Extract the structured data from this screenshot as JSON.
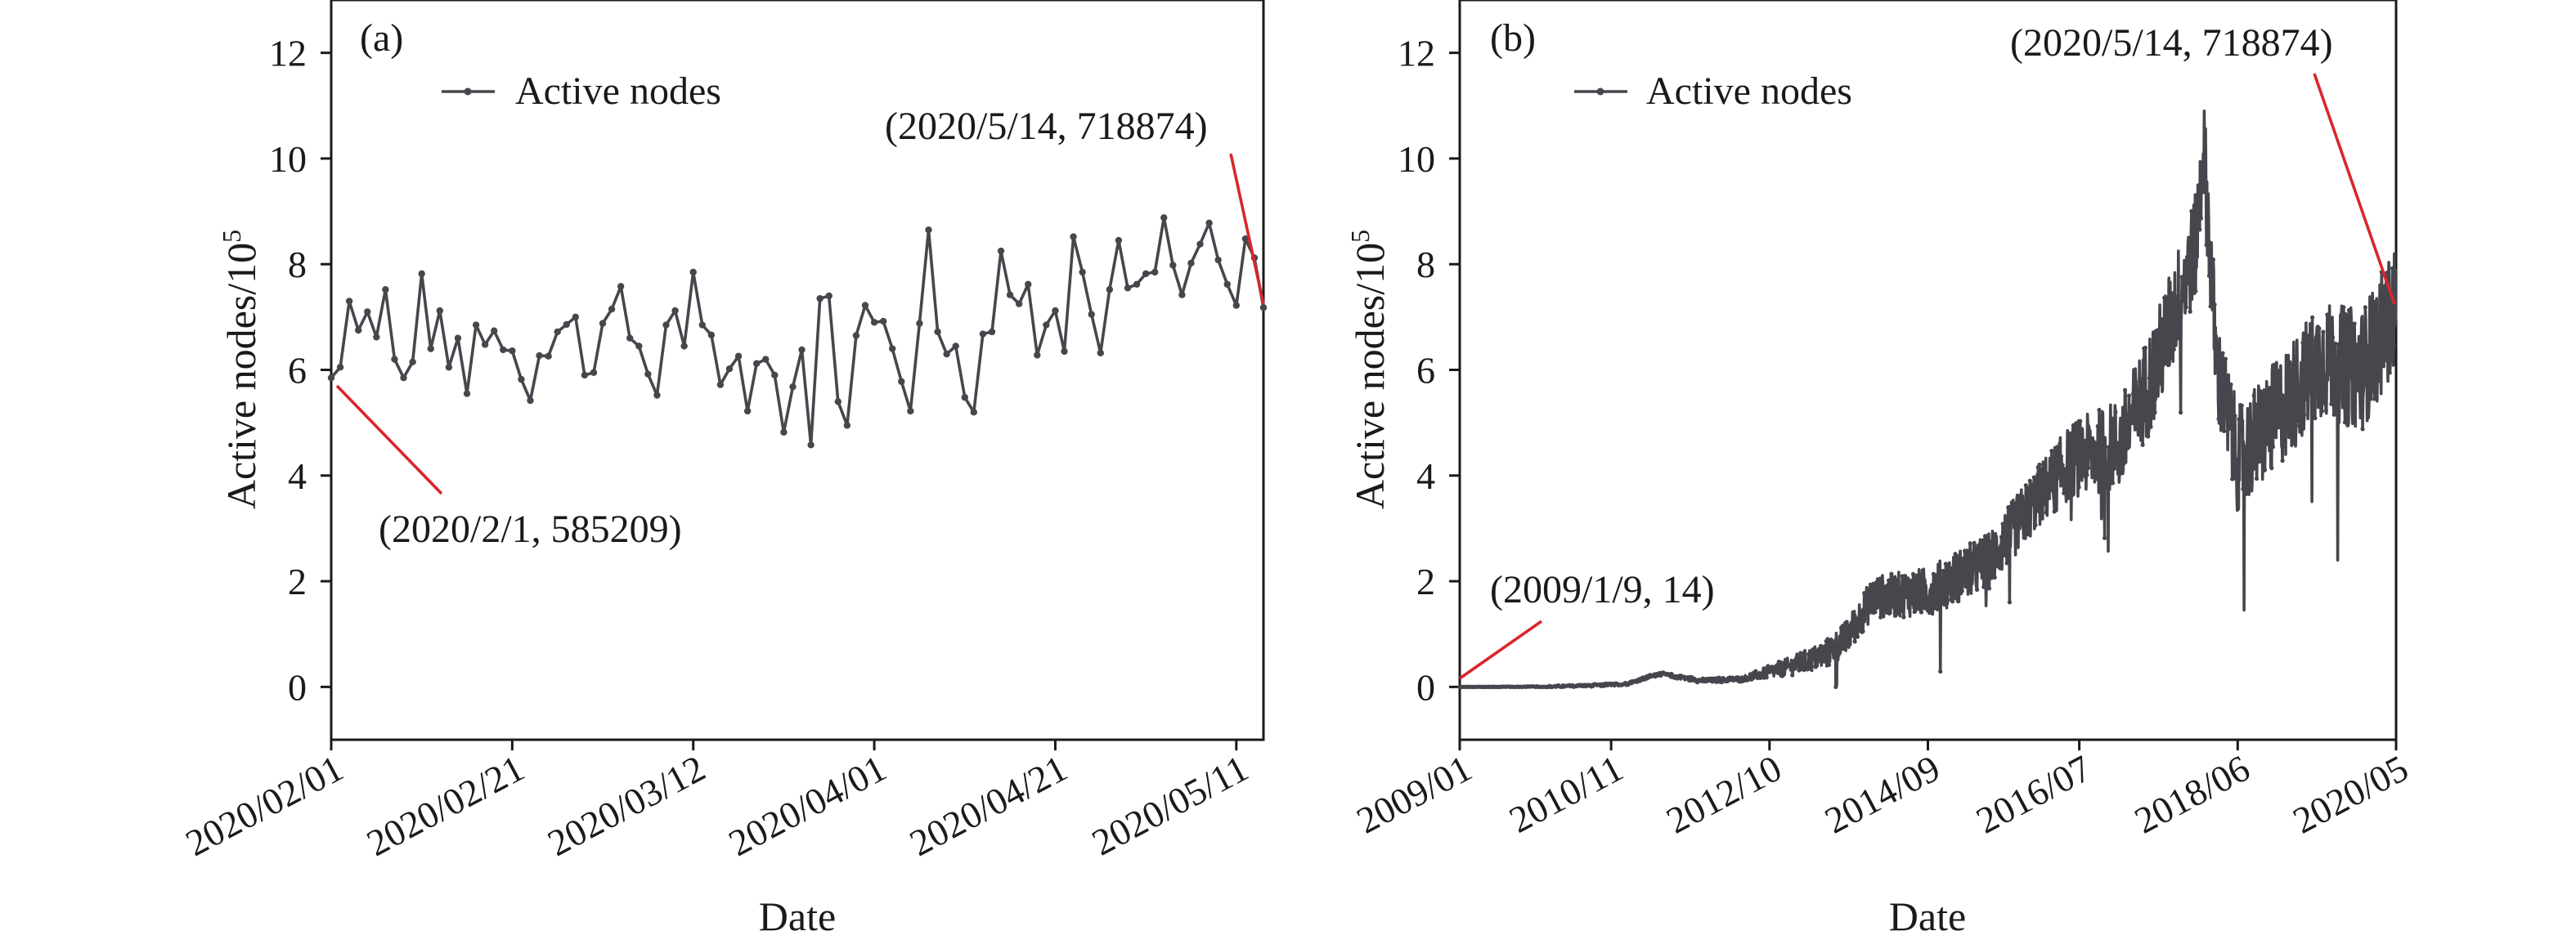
{
  "chart_data": [
    {
      "type": "line",
      "panel_tag": "(a)",
      "xlabel": "Date",
      "ylabel": "Active nodes/10",
      "ylabel_exponent": "5",
      "ylim": [
        -1,
        13
      ],
      "yticks": [
        "0",
        "2",
        "4",
        "6",
        "8",
        "10",
        "12"
      ],
      "xlim": [
        "2020-02-01",
        "2020-05-14"
      ],
      "xticks": [
        "2020/02/01",
        "2020/02/21",
        "2020/03/12",
        "2020/04/01",
        "2020/04/21",
        "2020/05/11"
      ],
      "legend": {
        "label": "Active nodes",
        "position": "top-left"
      },
      "colors": {
        "series": "#45474d",
        "annotation": "#d9262b"
      },
      "annotations": [
        {
          "text": "(2020/2/1, 585209)",
          "date": "2020-02-01",
          "value": 5.85209
        },
        {
          "text": "(2020/5/14, 718874)",
          "date": "2020-05-14",
          "value": 7.18874
        }
      ],
      "series": [
        {
          "name": "Active nodes",
          "start_date": "2020-02-01",
          "values": [
            5.85,
            6.05,
            7.3,
            6.75,
            7.1,
            6.62,
            7.52,
            6.2,
            5.85,
            6.15,
            7.82,
            6.4,
            7.12,
            6.05,
            6.6,
            5.55,
            6.85,
            6.48,
            6.74,
            6.38,
            6.36,
            5.82,
            5.42,
            6.27,
            6.26,
            6.72,
            6.86,
            7.0,
            5.9,
            5.95,
            6.88,
            7.15,
            7.58,
            6.6,
            6.45,
            5.92,
            5.52,
            6.85,
            7.12,
            6.45,
            7.85,
            6.85,
            6.66,
            5.72,
            6.02,
            6.26,
            5.22,
            6.12,
            6.2,
            5.9,
            4.82,
            5.68,
            6.38,
            4.58,
            7.35,
            7.4,
            5.4,
            4.95,
            6.65,
            7.22,
            6.9,
            6.92,
            6.4,
            5.78,
            5.22,
            6.88,
            8.65,
            6.72,
            6.3,
            6.45,
            5.48,
            5.2,
            6.68,
            6.72,
            8.25,
            7.42,
            7.25,
            7.62,
            6.28,
            6.85,
            7.12,
            6.35,
            8.52,
            7.85,
            7.05,
            6.32,
            7.52,
            8.45,
            7.55,
            7.62,
            7.82,
            7.85,
            8.88,
            7.98,
            7.42,
            8.02,
            8.38,
            8.78,
            8.08,
            7.62,
            7.22,
            8.48,
            8.12,
            7.18
          ]
        }
      ]
    },
    {
      "type": "line",
      "panel_tag": "(b)",
      "xlabel": "Date",
      "ylabel": "Active nodes/10",
      "ylabel_exponent": "5",
      "ylim": [
        -1,
        13
      ],
      "yticks": [
        "0",
        "2",
        "4",
        "6",
        "8",
        "10",
        "12"
      ],
      "xlim": [
        "2009-01",
        "2020-05"
      ],
      "xticks": [
        "2009/01",
        "2010/11",
        "2012/10",
        "2014/09",
        "2016/07",
        "2018/06",
        "2020/05"
      ],
      "legend": {
        "label": "Active nodes",
        "position": "top-left"
      },
      "colors": {
        "series": "#45474d",
        "annotation": "#d9262b"
      },
      "annotations": [
        {
          "text": "(2009/1/9, 14)",
          "date": "2009-01-09",
          "value": 0.00014
        },
        {
          "text": "(2020/5/14, 718874)",
          "date": "2020-05-14",
          "value": 7.18874
        }
      ],
      "series": [
        {
          "name": "Active nodes",
          "resolution": "daily (approximated from trend)",
          "trend": [
            {
              "date": "2009-01",
              "value": 0.0
            },
            {
              "date": "2010-01",
              "value": 0.0
            },
            {
              "date": "2011-01",
              "value": 0.05
            },
            {
              "date": "2011-06",
              "value": 0.25
            },
            {
              "date": "2011-12",
              "value": 0.12
            },
            {
              "date": "2012-06",
              "value": 0.15
            },
            {
              "date": "2012-12",
              "value": 0.35
            },
            {
              "date": "2013-06",
              "value": 0.6
            },
            {
              "date": "2013-09",
              "value": 0.9
            },
            {
              "date": "2014-01",
              "value": 1.7
            },
            {
              "date": "2014-09",
              "value": 1.8
            },
            {
              "date": "2015-06",
              "value": 2.4
            },
            {
              "date": "2016-01",
              "value": 3.6
            },
            {
              "date": "2016-06",
              "value": 4.3
            },
            {
              "date": "2017-01",
              "value": 4.6
            },
            {
              "date": "2017-06",
              "value": 6.0
            },
            {
              "date": "2017-12",
              "value": 8.4
            },
            {
              "date": "2018-01",
              "value": 10.3
            },
            {
              "date": "2018-03",
              "value": 6.0
            },
            {
              "date": "2018-06",
              "value": 4.3
            },
            {
              "date": "2018-12",
              "value": 5.2
            },
            {
              "date": "2019-06",
              "value": 6.2
            },
            {
              "date": "2019-12",
              "value": 6.0
            },
            {
              "date": "2020-05",
              "value": 7.19
            }
          ],
          "noise_amplitude": [
            {
              "date": "2009-01",
              "value": 0.0
            },
            {
              "date": "2012-06",
              "value": 0.05
            },
            {
              "date": "2014-01",
              "value": 0.4
            },
            {
              "date": "2016-01",
              "value": 0.6
            },
            {
              "date": "2017-06",
              "value": 1.0
            },
            {
              "date": "2018-06",
              "value": 1.0
            },
            {
              "date": "2020-05",
              "value": 1.2
            }
          ]
        }
      ]
    }
  ]
}
